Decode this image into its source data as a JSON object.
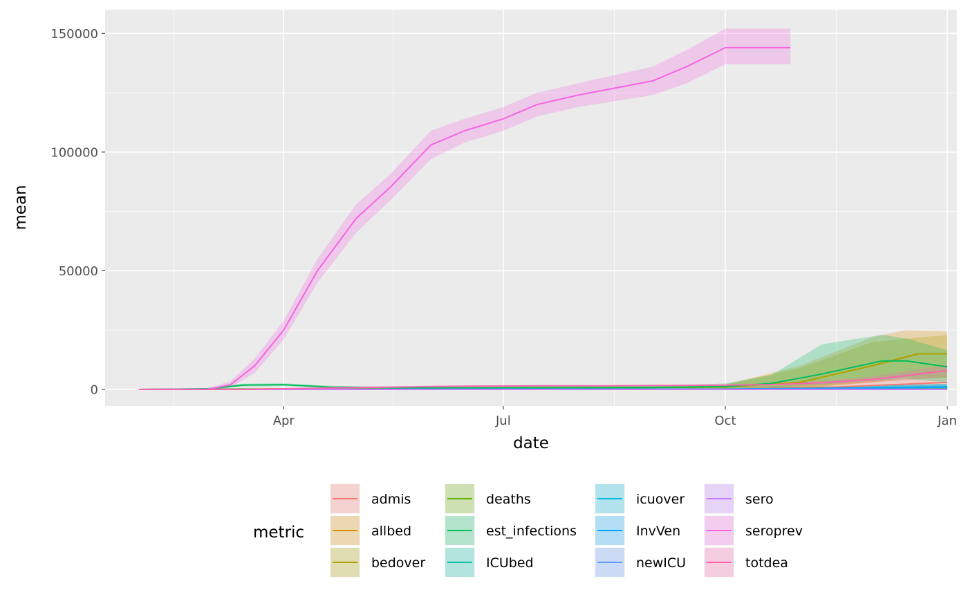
{
  "chart_data": {
    "type": "area",
    "xlabel": "date",
    "ylabel": "mean",
    "x_range": [
      "2020-01-18",
      "2021-01-05"
    ],
    "ylim": [
      -7000,
      160000
    ],
    "grid": true,
    "y_ticks": [
      0,
      50000,
      100000,
      150000
    ],
    "y_tick_labels": [
      "0",
      "50000",
      "100000",
      "150000"
    ],
    "x_ticks": [
      "2020-04-01",
      "2020-07-01",
      "2020-10-01",
      "2021-01-01"
    ],
    "x_tick_labels": [
      "Apr",
      "Jul",
      "Oct",
      "Jan"
    ],
    "legend": {
      "title": "metric",
      "position": "bottom"
    },
    "series": [
      {
        "name": "admis",
        "color": "#F8766D",
        "points": [
          [
            "2020-02-01",
            0
          ],
          [
            "2020-10-01",
            200
          ],
          [
            "2020-11-15",
            1000
          ],
          [
            "2020-12-15",
            2200
          ],
          [
            "2021-01-01",
            3000
          ]
        ],
        "band": [
          [
            "2020-02-01",
            0,
            0
          ],
          [
            "2020-10-01",
            0,
            500
          ],
          [
            "2020-11-15",
            200,
            2500
          ],
          [
            "2020-12-15",
            800,
            4500
          ],
          [
            "2021-01-01",
            1200,
            5500
          ]
        ]
      },
      {
        "name": "allbed",
        "color": "#DB8E00",
        "points": [
          [
            "2020-02-01",
            0
          ],
          [
            "2020-10-01",
            1000
          ],
          [
            "2020-11-01",
            3000
          ],
          [
            "2020-12-01",
            10000
          ],
          [
            "2020-12-20",
            15000
          ],
          [
            "2021-01-01",
            15000
          ]
        ],
        "band": [
          [
            "2020-02-01",
            0,
            0
          ],
          [
            "2020-10-01",
            0,
            2000
          ],
          [
            "2020-11-01",
            500,
            10000
          ],
          [
            "2020-12-01",
            3000,
            22000
          ],
          [
            "2020-12-15",
            5000,
            25000
          ],
          [
            "2021-01-01",
            5000,
            24500
          ]
        ]
      },
      {
        "name": "bedover",
        "color": "#AEA200",
        "points": [
          [
            "2020-02-01",
            0
          ],
          [
            "2020-10-01",
            1000
          ],
          [
            "2020-11-01",
            3000
          ],
          [
            "2020-12-01",
            10000
          ],
          [
            "2020-12-20",
            15000
          ],
          [
            "2021-01-01",
            15000
          ]
        ],
        "band": [
          [
            "2020-02-01",
            0,
            0
          ],
          [
            "2020-10-01",
            0,
            2000
          ],
          [
            "2020-11-01",
            500,
            9000
          ],
          [
            "2020-12-01",
            3000,
            20000
          ],
          [
            "2021-01-01",
            5000,
            23000
          ]
        ]
      },
      {
        "name": "deaths",
        "color": "#64B200",
        "points": [
          [
            "2020-02-01",
            0
          ],
          [
            "2020-10-01",
            50
          ],
          [
            "2020-12-01",
            150
          ],
          [
            "2021-01-01",
            250
          ]
        ],
        "band": [
          [
            "2020-02-01",
            0,
            0
          ],
          [
            "2020-10-01",
            0,
            200
          ],
          [
            "2021-01-01",
            0,
            800
          ]
        ]
      },
      {
        "name": "est_infections",
        "color": "#00BD5C",
        "points": [
          [
            "2020-02-01",
            0
          ],
          [
            "2020-03-01",
            300
          ],
          [
            "2020-03-15",
            1800
          ],
          [
            "2020-04-01",
            2000
          ],
          [
            "2020-04-20",
            1000
          ],
          [
            "2020-06-01",
            600
          ],
          [
            "2020-09-01",
            800
          ],
          [
            "2020-10-01",
            1200
          ],
          [
            "2020-10-20",
            2500
          ],
          [
            "2020-11-10",
            6500
          ],
          [
            "2020-12-05",
            12000
          ],
          [
            "2020-12-15",
            12000
          ],
          [
            "2021-01-01",
            9500
          ]
        ],
        "band": [
          [
            "2020-02-01",
            0,
            0
          ],
          [
            "2020-03-01",
            0,
            600
          ],
          [
            "2020-03-15",
            1200,
            2400
          ],
          [
            "2020-04-01",
            1400,
            2600
          ],
          [
            "2020-04-20",
            600,
            1500
          ],
          [
            "2020-06-01",
            300,
            900
          ],
          [
            "2020-09-01",
            300,
            1500
          ],
          [
            "2020-10-01",
            400,
            2500
          ],
          [
            "2020-10-20",
            800,
            6000
          ],
          [
            "2020-11-10",
            2000,
            19000
          ],
          [
            "2020-12-05",
            4000,
            23000
          ],
          [
            "2020-12-15",
            4500,
            21500
          ],
          [
            "2021-01-01",
            3000,
            16500
          ]
        ]
      },
      {
        "name": "ICUbed",
        "color": "#00C1A7",
        "points": [
          [
            "2020-02-01",
            0
          ],
          [
            "2020-10-01",
            150
          ],
          [
            "2020-12-01",
            600
          ],
          [
            "2021-01-01",
            900
          ]
        ],
        "band": [
          [
            "2020-02-01",
            0,
            0
          ],
          [
            "2020-10-01",
            0,
            400
          ],
          [
            "2020-12-01",
            100,
            1500
          ],
          [
            "2021-01-01",
            200,
            2200
          ]
        ]
      },
      {
        "name": "icuover",
        "color": "#00BADE",
        "points": [
          [
            "2020-02-01",
            0
          ],
          [
            "2020-10-01",
            150
          ],
          [
            "2020-12-01",
            700
          ],
          [
            "2021-01-01",
            1100
          ]
        ],
        "band": [
          [
            "2020-02-01",
            0,
            0
          ],
          [
            "2020-10-01",
            0,
            400
          ],
          [
            "2020-12-01",
            100,
            1600
          ],
          [
            "2021-01-01",
            200,
            2400
          ]
        ]
      },
      {
        "name": "InvVen",
        "color": "#00A6FF",
        "points": [
          [
            "2020-02-01",
            0
          ],
          [
            "2020-10-01",
            150
          ],
          [
            "2020-12-01",
            600
          ],
          [
            "2021-01-01",
            900
          ]
        ],
        "band": [
          [
            "2020-02-01",
            0,
            0
          ],
          [
            "2020-10-01",
            0,
            400
          ],
          [
            "2020-12-01",
            100,
            1500
          ],
          [
            "2021-01-01",
            200,
            2200
          ]
        ]
      },
      {
        "name": "newICU",
        "color": "#619CFF",
        "points": [
          [
            "2020-02-01",
            0
          ],
          [
            "2020-10-01",
            30
          ],
          [
            "2021-01-01",
            120
          ]
        ],
        "band": [
          [
            "2020-02-01",
            0,
            0
          ],
          [
            "2020-10-01",
            0,
            100
          ],
          [
            "2021-01-01",
            0,
            400
          ]
        ]
      },
      {
        "name": "sero",
        "color": "#C77CFF",
        "points": [
          [
            "2020-02-01",
            0
          ],
          [
            "2021-01-01",
            0
          ]
        ],
        "band": [
          [
            "2020-02-01",
            0,
            0
          ],
          [
            "2021-01-01",
            0,
            0
          ]
        ]
      },
      {
        "name": "seroprev",
        "color": "#F564E3",
        "points": [
          [
            "2020-02-01",
            0
          ],
          [
            "2020-03-01",
            100
          ],
          [
            "2020-03-10",
            2000
          ],
          [
            "2020-03-20",
            10000
          ],
          [
            "2020-04-01",
            25000
          ],
          [
            "2020-04-15",
            50000
          ],
          [
            "2020-05-01",
            72000
          ],
          [
            "2020-05-15",
            85000
          ],
          [
            "2020-06-01",
            103000
          ],
          [
            "2020-06-15",
            109000
          ],
          [
            "2020-07-01",
            114000
          ],
          [
            "2020-07-15",
            120000
          ],
          [
            "2020-08-01",
            124000
          ],
          [
            "2020-09-01",
            130000
          ],
          [
            "2020-09-15",
            136000
          ],
          [
            "2020-10-01",
            144000
          ],
          [
            "2020-10-28",
            144000
          ]
        ],
        "band": [
          [
            "2020-02-01",
            0,
            0
          ],
          [
            "2020-03-01",
            0,
            600
          ],
          [
            "2020-03-10",
            700,
            3500
          ],
          [
            "2020-03-20",
            7000,
            13000
          ],
          [
            "2020-04-01",
            21000,
            29000
          ],
          [
            "2020-04-15",
            45000,
            55000
          ],
          [
            "2020-05-01",
            66000,
            78000
          ],
          [
            "2020-05-15",
            79500,
            90500
          ],
          [
            "2020-06-01",
            97000,
            109000
          ],
          [
            "2020-06-15",
            104000,
            114000
          ],
          [
            "2020-07-01",
            109000,
            119000
          ],
          [
            "2020-07-15",
            115000,
            125000
          ],
          [
            "2020-08-01",
            119000,
            129000
          ],
          [
            "2020-09-01",
            124000,
            136000
          ],
          [
            "2020-09-15",
            129000,
            143000
          ],
          [
            "2020-10-01",
            137000,
            152000
          ],
          [
            "2020-10-28",
            137000,
            152000
          ]
        ]
      },
      {
        "name": "totdea",
        "color": "#FF64B0",
        "points": [
          [
            "2020-02-01",
            0
          ],
          [
            "2020-03-15",
            0
          ],
          [
            "2020-04-15",
            500
          ],
          [
            "2020-05-15",
            1000
          ],
          [
            "2020-06-15",
            1400
          ],
          [
            "2020-07-15",
            1500
          ],
          [
            "2020-08-15",
            1550
          ],
          [
            "2020-09-15",
            1700
          ],
          [
            "2020-10-01",
            1800
          ],
          [
            "2020-10-20",
            2000
          ],
          [
            "2020-11-10",
            2800
          ],
          [
            "2020-12-01",
            4200
          ],
          [
            "2020-12-15",
            5800
          ],
          [
            "2021-01-01",
            8000
          ]
        ],
        "band": [
          [
            "2020-02-01",
            0,
            0
          ],
          [
            "2020-03-15",
            0,
            0
          ],
          [
            "2020-04-15",
            300,
            700
          ],
          [
            "2020-05-15",
            800,
            1200
          ],
          [
            "2020-06-15",
            1200,
            1600
          ],
          [
            "2020-07-15",
            1300,
            1700
          ],
          [
            "2020-08-15",
            1350,
            1750
          ],
          [
            "2020-09-15",
            1500,
            1900
          ],
          [
            "2020-10-01",
            1600,
            2000
          ],
          [
            "2020-10-20",
            1700,
            2300
          ],
          [
            "2020-11-10",
            2000,
            3600
          ],
          [
            "2020-12-01",
            3000,
            5500
          ],
          [
            "2020-12-15",
            4000,
            7600
          ],
          [
            "2021-01-01",
            5500,
            10500
          ]
        ]
      }
    ]
  }
}
